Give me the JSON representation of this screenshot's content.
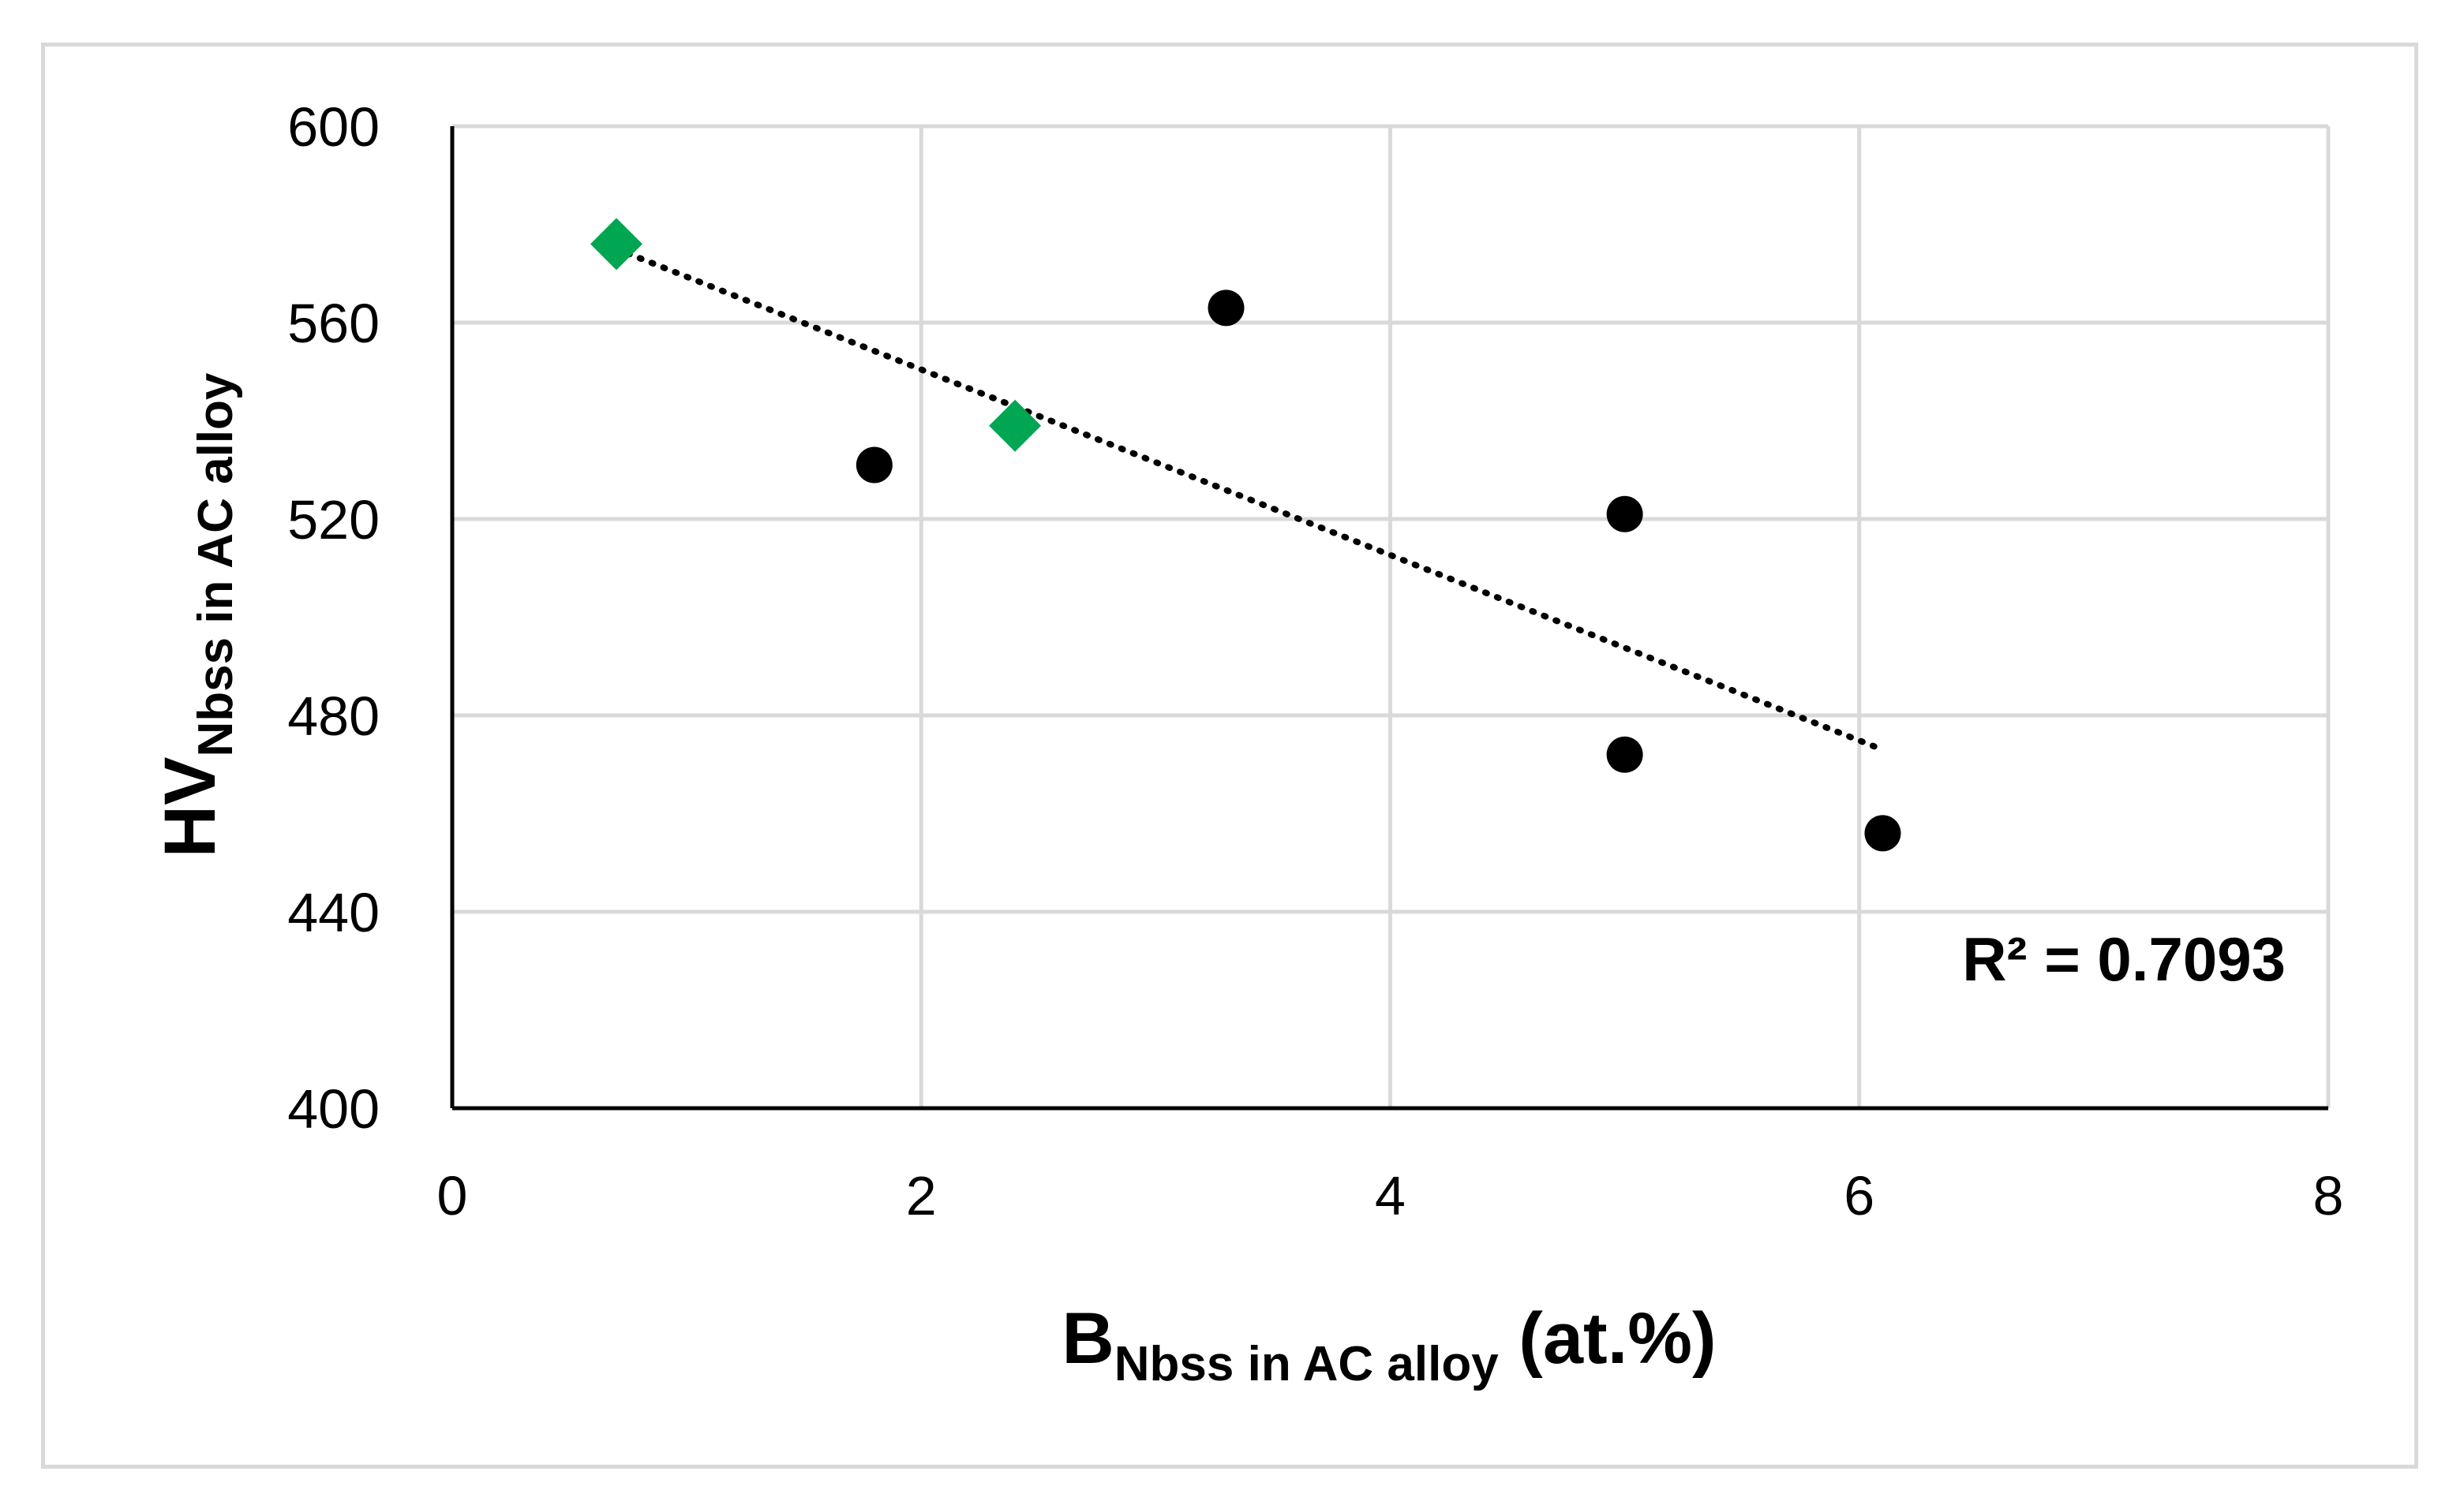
{
  "chart_data": {
    "type": "scatter",
    "xlabel": {
      "main": "B",
      "sub": "Nbss in AC alloy",
      "suffix": " (at.%)"
    },
    "ylabel": {
      "main": "HV",
      "sub": "Nbss in AC alloy"
    },
    "xlim": [
      0,
      8
    ],
    "ylim": [
      400,
      600
    ],
    "x_ticks": [
      0,
      2,
      4,
      6,
      8
    ],
    "y_ticks": [
      400,
      440,
      480,
      520,
      560,
      600
    ],
    "x_tick_labels": [
      "0",
      "2",
      "4",
      "6",
      "8"
    ],
    "y_tick_labels": [
      "400",
      "440",
      "480",
      "520",
      "560",
      "600"
    ],
    "grid": true,
    "series": [
      {
        "marker": "circle",
        "color": "#000000",
        "points": [
          {
            "x": 1.8,
            "y": 531
          },
          {
            "x": 3.3,
            "y": 563
          },
          {
            "x": 5.0,
            "y": 521
          },
          {
            "x": 5.0,
            "y": 472
          },
          {
            "x": 6.1,
            "y": 456
          }
        ]
      },
      {
        "marker": "diamond",
        "color": "#00a651",
        "points": [
          {
            "x": 0.7,
            "y": 576
          },
          {
            "x": 2.4,
            "y": 539
          }
        ]
      }
    ],
    "trendline": {
      "style": "dotted",
      "color": "#000000",
      "x_range": [
        0.7,
        6.1
      ],
      "y_range": [
        575,
        473
      ]
    },
    "annotation": "R² = 0.7093",
    "colors": {
      "grid": "#d9d9d9",
      "axis": "#000000",
      "frame": "#d9d9d9"
    }
  }
}
